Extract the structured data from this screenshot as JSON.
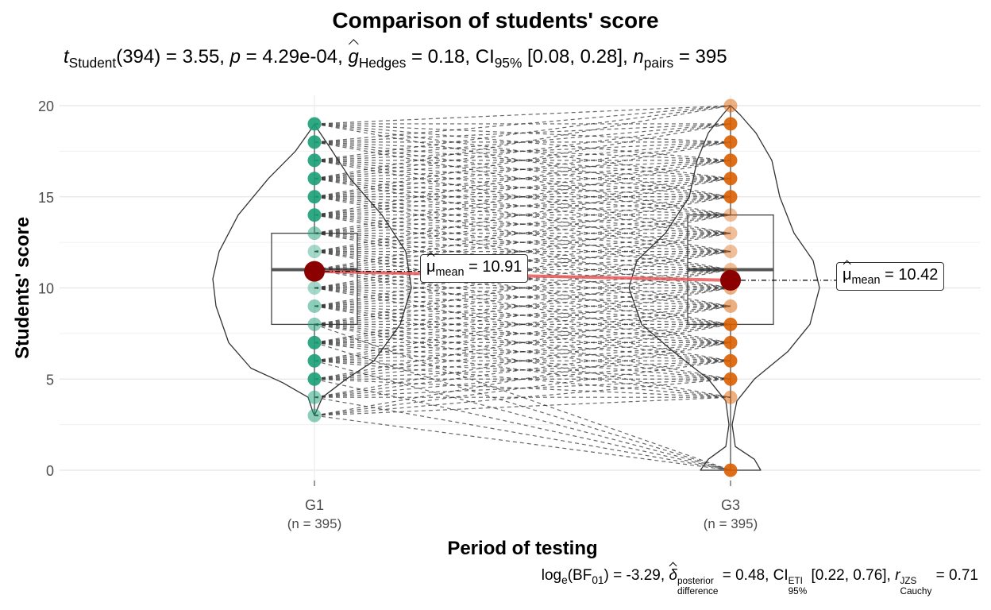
{
  "chart_data": {
    "type": "violin-box-paired",
    "title": "Comparison of students' score",
    "subtitle": {
      "t_label": "t",
      "t_sub": "Student",
      "df": "(394)",
      "t_value": "= 3.55,",
      "p_label": "p",
      "p_value": "= 4.29e-04,",
      "g_label": "g",
      "g_sub": "Hedges",
      "g_value": "= 0.18,",
      "ci_label": "CI",
      "ci_sub": "95%",
      "ci_value": "[0.08, 0.28],",
      "n_label": "n",
      "n_sub": "pairs",
      "n_value": "= 395"
    },
    "caption": {
      "log_label": "log",
      "log_sub": "e",
      "bf_label": "(BF",
      "bf_sub": "01",
      "bf_value": ") = -3.29,",
      "delta_label": "δ",
      "delta_sup": "posterior",
      "delta_sub": "difference",
      "delta_value": "= 0.48,",
      "ci_label": "CI",
      "ci_sup": "ETI",
      "ci_sub": "95%",
      "ci_value": "[0.22, 0.76],",
      "r_label": "r",
      "r_sup": "JZS",
      "r_sub": "Cauchy",
      "r_value": "= 0.71"
    },
    "xlabel": "Period of testing",
    "ylabel": "Students' score",
    "ylim": [
      0,
      20
    ],
    "yticks": [
      "0",
      "5",
      "10",
      "15",
      "20"
    ],
    "categories": [
      "G1",
      "G3"
    ],
    "n_labels": [
      "(n = 395)",
      "(n = 395)"
    ],
    "series": [
      {
        "name": "G1",
        "color": "#1b9e77",
        "mean": 10.91,
        "mean_label_symbol": "μ",
        "mean_label_sub": "mean",
        "mean_label_value": "= 10.91",
        "box": {
          "q1": 8,
          "median": 11,
          "q3": 13,
          "whisker_low": 3,
          "whisker_high": 19
        },
        "points": [
          3,
          4,
          5,
          6,
          7,
          8,
          9,
          10,
          11,
          12,
          13,
          14,
          15,
          16,
          17,
          18,
          19
        ],
        "point_alpha": [
          0.5,
          0.5,
          0.9,
          0.9,
          0.9,
          0.5,
          0.5,
          0.4,
          0.4,
          0.4,
          0.5,
          0.9,
          0.9,
          0.9,
          0.9,
          0.9,
          0.9
        ]
      },
      {
        "name": "G3",
        "color": "#d95f02",
        "mean": 10.42,
        "mean_label_symbol": "μ",
        "mean_label_sub": "mean",
        "mean_label_value": "= 10.42",
        "box": {
          "q1": 8,
          "median": 11,
          "q3": 14,
          "whisker_low": 0,
          "whisker_high": 20
        },
        "points": [
          0,
          4,
          5,
          6,
          7,
          8,
          9,
          10,
          11,
          12,
          13,
          14,
          15,
          16,
          17,
          18,
          19,
          20
        ],
        "point_alpha": [
          0.9,
          0.5,
          0.9,
          0.9,
          0.9,
          0.9,
          0.5,
          0.5,
          0.4,
          0.4,
          0.4,
          0.4,
          0.9,
          0.9,
          0.9,
          0.9,
          0.9,
          0.5
        ]
      }
    ],
    "paired_lines_color": "#333333",
    "mean_line_color": "#e8595b",
    "mean_point_color": "#8b0000",
    "grid": true
  }
}
